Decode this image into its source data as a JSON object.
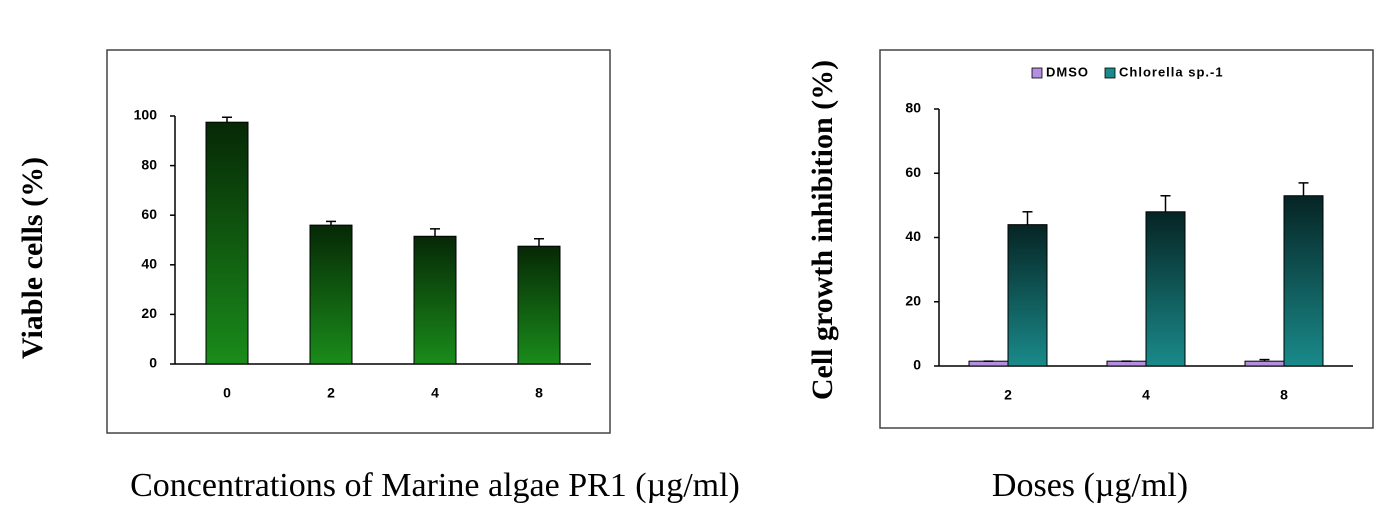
{
  "chart_data": [
    {
      "type": "bar",
      "y_label": "Viable cells (%)",
      "x_label": "Concentrations of Marine algae PR1 (µg/ml)",
      "categories": [
        "0",
        "2",
        "4",
        "8"
      ],
      "values": [
        97.5,
        56,
        51.5,
        47.5
      ],
      "errors": [
        2,
        1.5,
        3,
        3
      ],
      "color": "#1a8c1a",
      "ylim": [
        0,
        100
      ],
      "yticks": [
        0,
        20,
        40,
        60,
        80,
        100
      ]
    },
    {
      "type": "bar",
      "y_label": "Cell growth inhibition (%)",
      "x_label": "Doses (µg/ml)",
      "categories": [
        "2",
        "4",
        "8"
      ],
      "series": [
        {
          "name": "DMSO",
          "color": "#b48ee0",
          "values": [
            1.5,
            1.5,
            1.5
          ],
          "errors": [
            0,
            0,
            0.5
          ]
        },
        {
          "name": "Chlorella sp.-1",
          "color": "#1a8a8a",
          "values": [
            44,
            48,
            53
          ],
          "errors": [
            4,
            5,
            4
          ]
        }
      ],
      "ylim": [
        0,
        80
      ],
      "yticks": [
        0,
        20,
        40,
        60,
        80
      ],
      "legend": "top"
    }
  ]
}
